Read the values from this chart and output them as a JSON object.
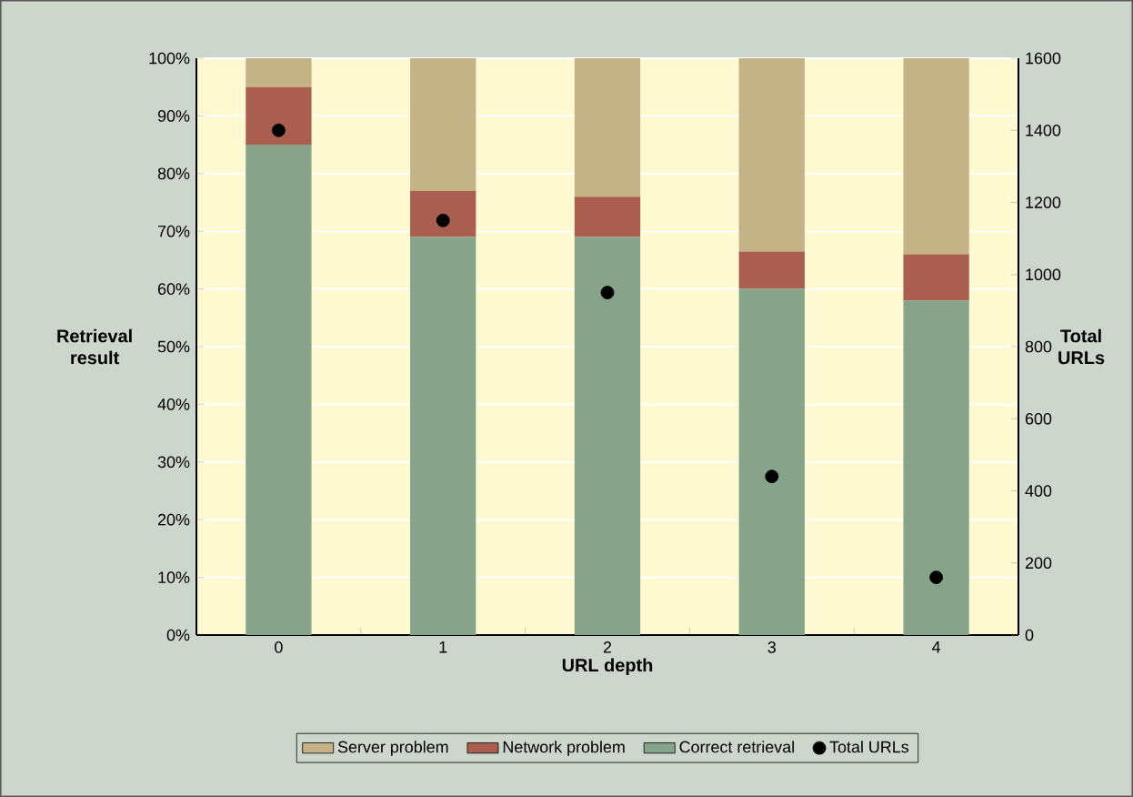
{
  "chart_data": {
    "type": "bar",
    "stacked": true,
    "categories": [
      "0",
      "1",
      "2",
      "3",
      "4"
    ],
    "xlabel": "URL depth",
    "ylabel": "Retrieval result",
    "y2label": "Total URLs",
    "series": [
      {
        "name": "Correct retrieval",
        "color": "#87a48b",
        "values": [
          85,
          69,
          69,
          60,
          58
        ]
      },
      {
        "name": "Network problem",
        "color": "#a95e50",
        "values": [
          10,
          8,
          7,
          6.5,
          8
        ]
      },
      {
        "name": "Server problem",
        "color": "#c4b386",
        "values": [
          5,
          23,
          24,
          33.5,
          34
        ]
      },
      {
        "name": "Total URLs",
        "type": "scatter",
        "axis": "y2",
        "color": "#000000",
        "marker": "circle",
        "x": [
          "0",
          "1",
          "2",
          "3",
          "4"
        ],
        "values": [
          1400,
          1150,
          950,
          440,
          160
        ]
      }
    ],
    "ylim": [
      0,
      100
    ],
    "yticks": [
      {
        "value": 0,
        "label": "0%"
      },
      {
        "value": 10,
        "label": "10%"
      },
      {
        "value": 20,
        "label": "20%"
      },
      {
        "value": 30,
        "label": "30%"
      },
      {
        "value": 40,
        "label": "40%"
      },
      {
        "value": 50,
        "label": "50%"
      },
      {
        "value": 60,
        "label": "60%"
      },
      {
        "value": 70,
        "label": "70%"
      },
      {
        "value": 80,
        "label": "80%"
      },
      {
        "value": 90,
        "label": "90%"
      },
      {
        "value": 100,
        "label": "100%"
      }
    ],
    "y2lim": [
      0,
      1600
    ],
    "y2ticks": [
      0,
      200,
      400,
      600,
      800,
      1000,
      1200,
      1400,
      1600
    ],
    "grid": "y",
    "legend": "bottom"
  }
}
